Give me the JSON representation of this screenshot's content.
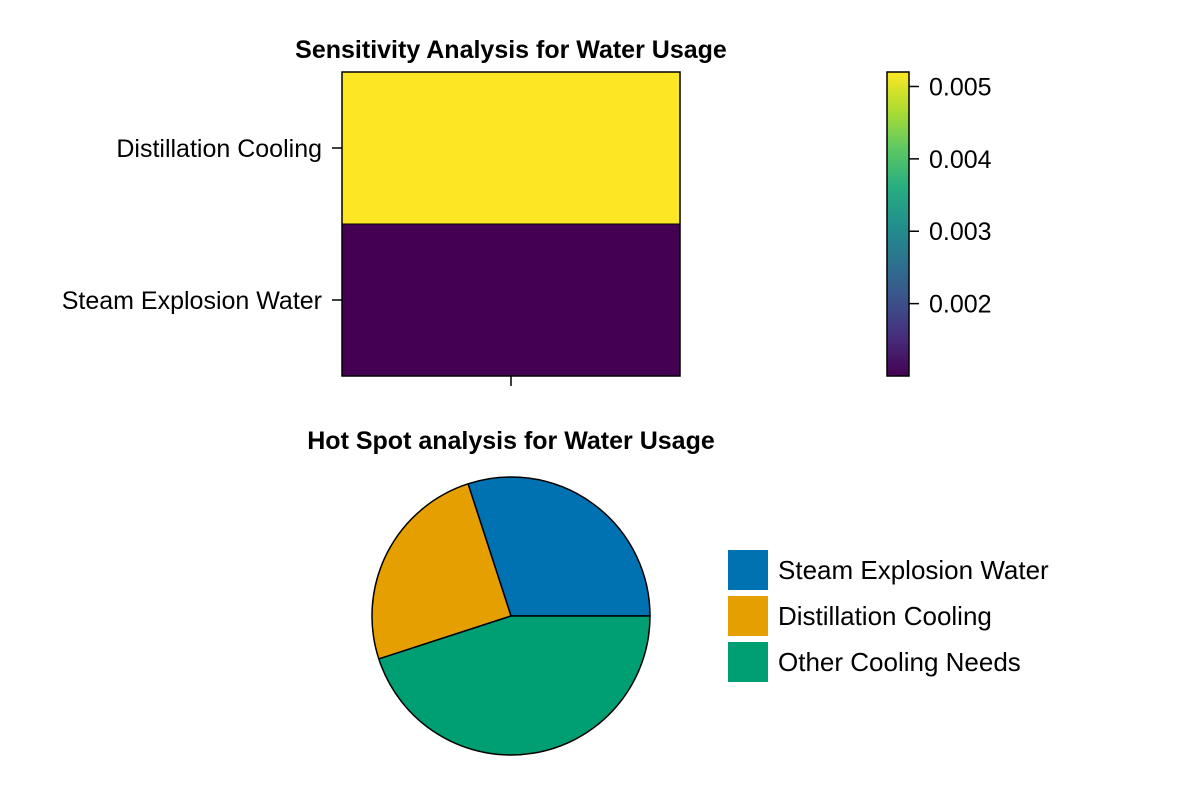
{
  "chart_data": [
    {
      "type": "heatmap",
      "title": "Sensitivity Analysis for Water Usage",
      "xlabel": "",
      "ylabel": "",
      "rows": [
        "Distillation Cooling",
        "Steam Explosion Water"
      ],
      "values": [
        [
          0.0052
        ],
        [
          0.001
        ]
      ],
      "colormap": "viridis",
      "colorbar": {
        "range": [
          0.001,
          0.0052
        ],
        "ticks": [
          0.005,
          0.004,
          0.003,
          0.002
        ],
        "tick_labels": [
          "0.005",
          "0.004",
          "0.003",
          "0.002"
        ]
      }
    },
    {
      "type": "pie",
      "title": "Hot Spot analysis for Water Usage",
      "labels": [
        "Steam Explosion Water",
        "Distillation Cooling",
        "Other Cooling Needs"
      ],
      "values": [
        0.3,
        0.25,
        0.45
      ],
      "colors": [
        "#0072B2",
        "#E69F00",
        "#009E73"
      ],
      "legend_position": "right"
    }
  ]
}
